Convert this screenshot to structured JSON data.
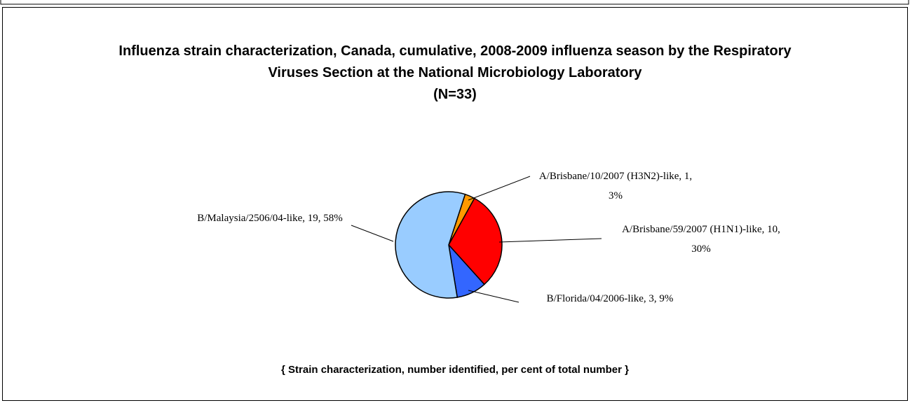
{
  "chart_data": {
    "type": "pie",
    "title": "Influenza strain characterization, Canada, cumulative, 2008-2009 influenza season by the Respiratory Viruses Section at the National Microbiology Laboratory",
    "subtitle": "(N=33)",
    "note": "{ Strain characterization, number identified, per cent of total number }",
    "values": [
      1,
      10,
      3,
      19
    ],
    "value_labels": [
      "A/Brisbane/10/2007 (H3N2)-like, 1, 3%",
      "A/Brisbane/59/2007 (H1N1)-like, 10, 30%",
      "B/Florida/04/2006-like, 3, 9%",
      "B/Malaysia/2506/04-like, 19, 58%"
    ],
    "colors": [
      "#ff9900",
      "#ff0000",
      "#3366ff",
      "#99ccff"
    ]
  }
}
